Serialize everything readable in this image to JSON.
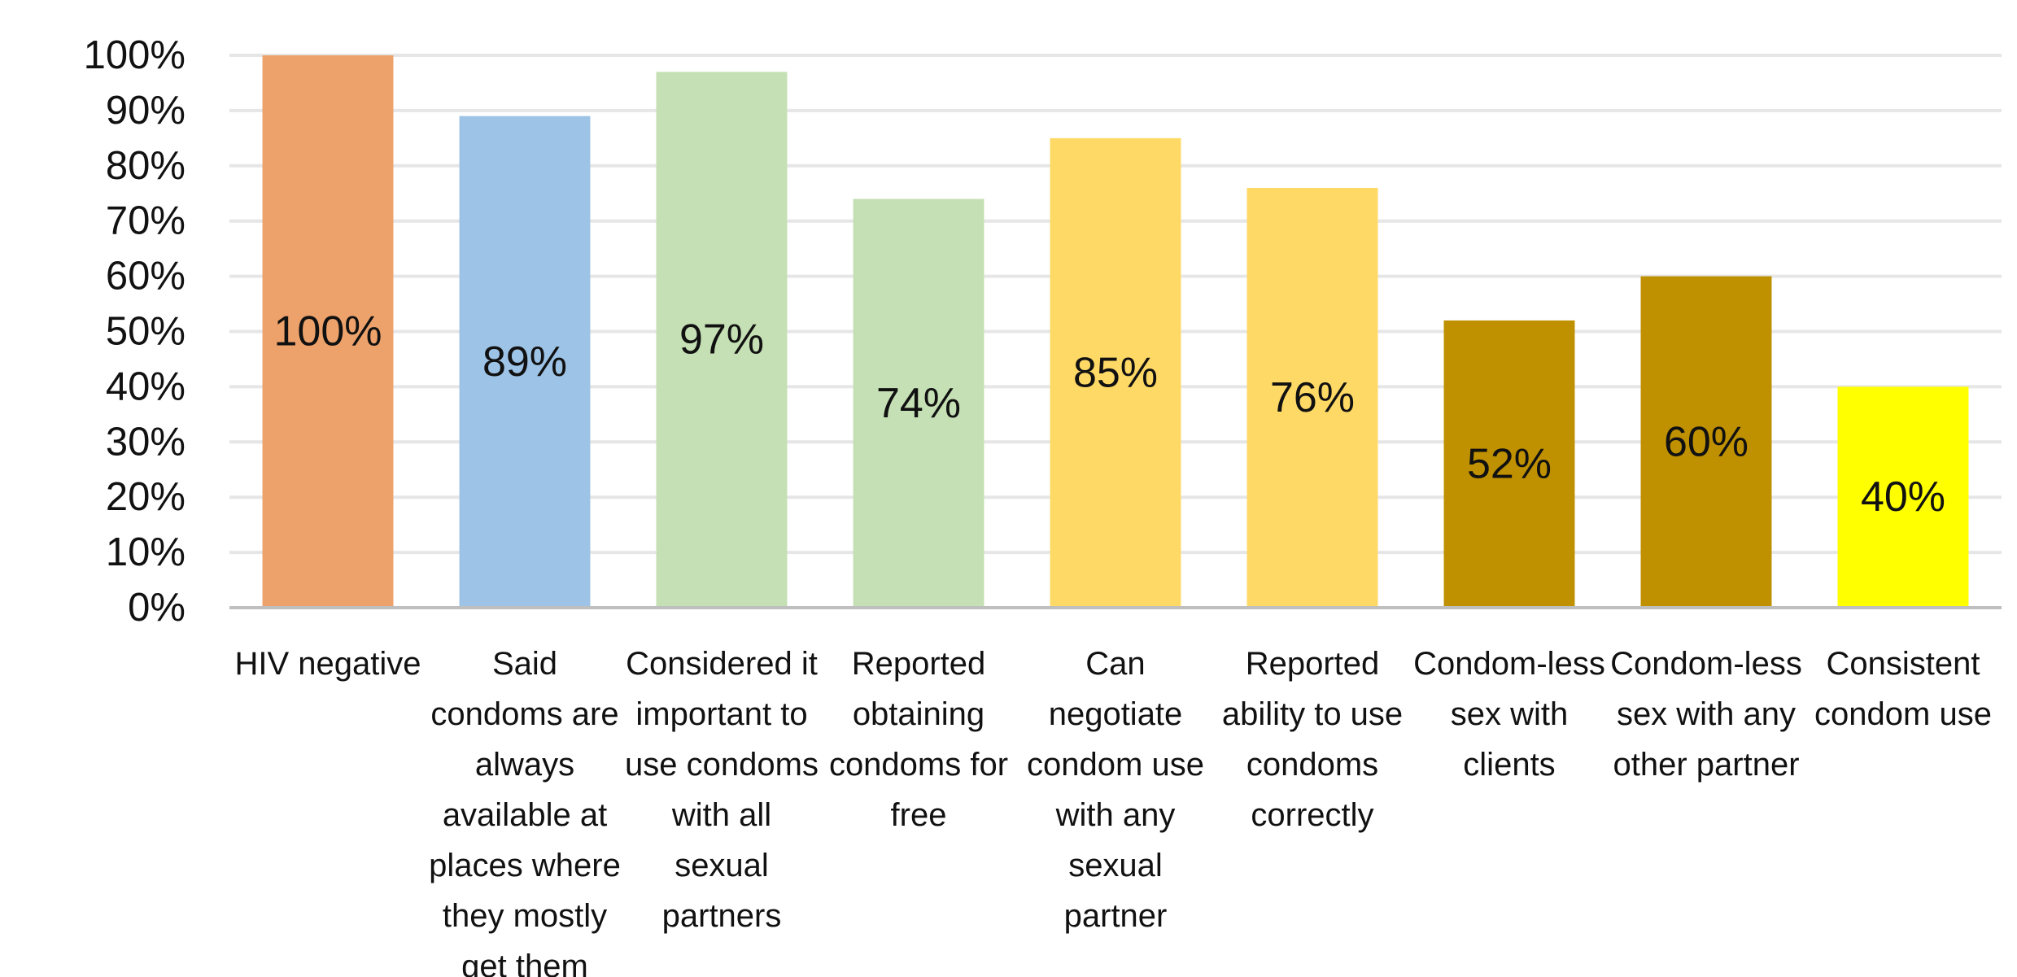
{
  "chart_data": {
    "type": "bar",
    "categories": [
      "HIV negative",
      "Said condoms are always available at places where they mostly get them",
      "Considered it important to use condoms with all sexual partners",
      "Reported obtaining condoms for free",
      "Can negotiate condom use with any sexual partner",
      "Reported ability to use condoms correctly",
      "Condom-less sex with clients",
      "Condom-less sex with any other partner",
      "Consistent condom use"
    ],
    "category_lines": [
      [
        "HIV negative"
      ],
      [
        "Said",
        "condoms are",
        "always",
        "available at",
        "places where",
        "they mostly",
        "get them"
      ],
      [
        "Considered it",
        "important to",
        "use condoms",
        "with all",
        "sexual",
        "partners"
      ],
      [
        "Reported",
        "obtaining",
        "condoms for",
        "free"
      ],
      [
        "Can",
        "negotiate",
        "condom use",
        "with any",
        "sexual",
        "partner"
      ],
      [
        "Reported",
        "ability to use",
        "condoms",
        "correctly"
      ],
      [
        "Condom-less",
        "sex with",
        "clients"
      ],
      [
        "Condom-less",
        "sex with any",
        "other partner"
      ],
      [
        "Consistent",
        "condom use"
      ]
    ],
    "values": [
      100,
      89,
      97,
      74,
      85,
      76,
      52,
      60,
      40
    ],
    "data_labels": [
      "100%",
      "89%",
      "97%",
      "74%",
      "85%",
      "76%",
      "52%",
      "60%",
      "40%"
    ],
    "colors": [
      "#eea26b",
      "#9dc3e6",
      "#c5e0b4",
      "#c5e0b4",
      "#ffd966",
      "#ffd966",
      "#bf9000",
      "#bf9000",
      "#ffff00"
    ],
    "yticks": [
      "0%",
      "10%",
      "20%",
      "30%",
      "40%",
      "50%",
      "60%",
      "70%",
      "80%",
      "90%",
      "100%"
    ],
    "ylim": [
      0,
      100
    ],
    "grid": true,
    "title": "",
    "xlabel": "",
    "ylabel": ""
  }
}
